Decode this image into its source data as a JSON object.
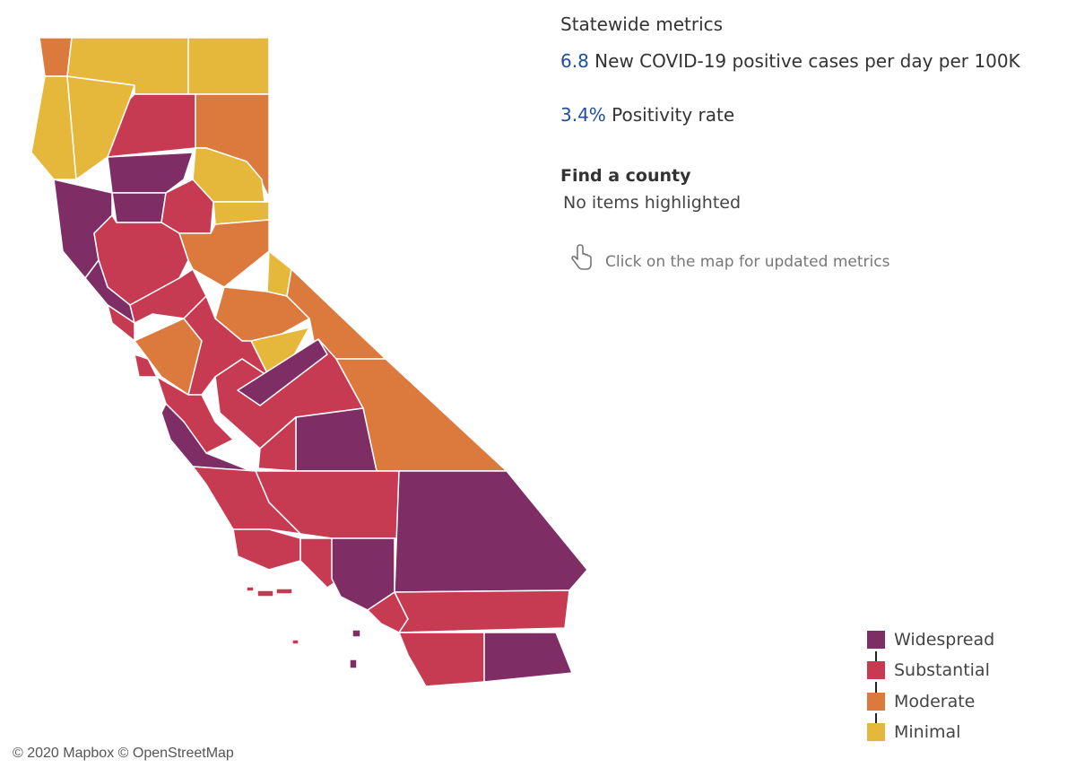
{
  "statewide_metrics": {
    "title": "Statewide metrics",
    "metrics": [
      {
        "value": "6.8",
        "label": "New COVID-19 positive cases per day per 100K"
      },
      {
        "value": "3.4%",
        "label": "Positivity rate"
      }
    ]
  },
  "find_county": {
    "title": "Find a county",
    "status": "No items highlighted"
  },
  "hint": "Click on the map for updated metrics",
  "legend": [
    {
      "name": "Widespread",
      "color": "#7e2d65"
    },
    {
      "name": "Substantial",
      "color": "#c63b52"
    },
    {
      "name": "Moderate",
      "color": "#dc7a3e"
    },
    {
      "name": "Minimal",
      "color": "#e5b73a"
    }
  ],
  "attribution": "© 2020 Mapbox © OpenStreetMap"
}
